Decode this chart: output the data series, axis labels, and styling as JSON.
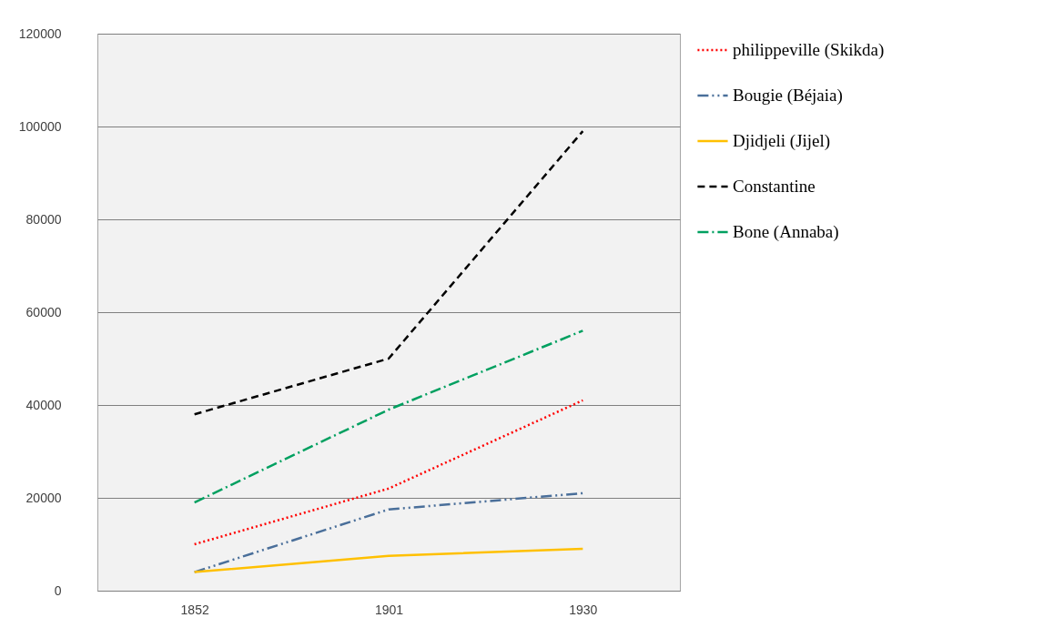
{
  "chart_data": {
    "type": "line",
    "categories": [
      "1852",
      "1901",
      "1930"
    ],
    "series": [
      {
        "name": "philippeville (Skikda)",
        "color": "#ff0000",
        "line_style": "dotted",
        "values": [
          10000,
          22000,
          41000
        ]
      },
      {
        "name": "Bougie (Béjaia)",
        "color": "#4a6f9a",
        "line_style": "dashdotdot",
        "values": [
          4000,
          17500,
          21000
        ]
      },
      {
        "name": "Djidjeli (Jijel)",
        "color": "#ffc000",
        "line_style": "solid",
        "values": [
          4000,
          7500,
          9000
        ]
      },
      {
        "name": "Constantine",
        "color": "#000000",
        "line_style": "dashed",
        "values": [
          38000,
          50000,
          99000
        ]
      },
      {
        "name": "Bone (Annaba)",
        "color": "#00a060",
        "line_style": "dashdot",
        "values": [
          19000,
          39000,
          56000
        ]
      }
    ],
    "ylim": [
      0,
      120000
    ],
    "yticks": [
      0,
      20000,
      40000,
      60000,
      80000,
      100000,
      120000
    ],
    "grid": "y",
    "legend": "right"
  }
}
